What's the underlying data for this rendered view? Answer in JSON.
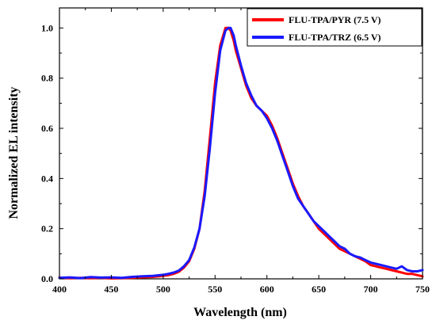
{
  "chart_data": {
    "type": "line",
    "title": "",
    "xlabel": "Wavelength (nm)",
    "ylabel": "Normalized EL intensity",
    "xlim": [
      400,
      750
    ],
    "ylim": [
      0,
      1.08
    ],
    "x_ticks": [
      "400",
      "450",
      "500",
      "550",
      "600",
      "650",
      "700",
      "750"
    ],
    "y_ticks": [
      "0.0",
      "0.2",
      "0.4",
      "0.6",
      "0.8",
      "1.0"
    ],
    "x_tick_values": [
      400,
      450,
      500,
      550,
      600,
      650,
      700,
      750
    ],
    "y_tick_values": [
      0.0,
      0.2,
      0.4,
      0.6,
      0.8,
      1.0
    ],
    "legend_position": "top-right",
    "grid": false,
    "series": [
      {
        "name": "FLU-TPA/PYR (7.5 V)",
        "color": "#ff0000",
        "x": [
          400,
          410,
          420,
          430,
          440,
          450,
          460,
          470,
          480,
          490,
          500,
          505,
          510,
          515,
          520,
          525,
          530,
          535,
          540,
          545,
          550,
          555,
          560,
          563,
          565,
          568,
          570,
          575,
          580,
          585,
          590,
          595,
          600,
          605,
          610,
          615,
          620,
          625,
          630,
          635,
          640,
          645,
          650,
          655,
          660,
          665,
          670,
          675,
          680,
          685,
          690,
          695,
          700,
          705,
          710,
          715,
          720,
          725,
          730,
          735,
          740,
          745,
          750
        ],
        "y": [
          0.005,
          0.003,
          0.004,
          0.003,
          0.004,
          0.002,
          0.003,
          0.004,
          0.006,
          0.008,
          0.012,
          0.015,
          0.02,
          0.028,
          0.045,
          0.07,
          0.12,
          0.2,
          0.35,
          0.56,
          0.78,
          0.93,
          1.0,
          1.0,
          0.99,
          0.95,
          0.91,
          0.84,
          0.77,
          0.72,
          0.69,
          0.67,
          0.65,
          0.61,
          0.56,
          0.5,
          0.44,
          0.38,
          0.33,
          0.29,
          0.26,
          0.23,
          0.2,
          0.18,
          0.16,
          0.14,
          0.12,
          0.11,
          0.1,
          0.09,
          0.08,
          0.07,
          0.055,
          0.05,
          0.045,
          0.04,
          0.035,
          0.03,
          0.025,
          0.02,
          0.02,
          0.015,
          0.01
        ]
      },
      {
        "name": "FLU-TPA/TRZ (6.5 V)",
        "color": "#1a1aff",
        "x": [
          400,
          410,
          420,
          430,
          440,
          450,
          460,
          470,
          480,
          490,
          500,
          505,
          510,
          515,
          520,
          525,
          530,
          535,
          540,
          545,
          550,
          555,
          560,
          563,
          565,
          568,
          570,
          575,
          580,
          585,
          590,
          595,
          600,
          605,
          610,
          615,
          620,
          625,
          630,
          635,
          640,
          645,
          650,
          655,
          660,
          665,
          670,
          675,
          680,
          685,
          690,
          695,
          700,
          705,
          710,
          715,
          720,
          725,
          730,
          735,
          740,
          745,
          750
        ],
        "y": [
          0.004,
          0.006,
          0.003,
          0.007,
          0.005,
          0.006,
          0.004,
          0.008,
          0.01,
          0.012,
          0.016,
          0.02,
          0.025,
          0.033,
          0.05,
          0.075,
          0.125,
          0.2,
          0.33,
          0.52,
          0.74,
          0.91,
          0.99,
          1.0,
          1.0,
          0.97,
          0.93,
          0.85,
          0.78,
          0.73,
          0.69,
          0.67,
          0.64,
          0.6,
          0.55,
          0.49,
          0.43,
          0.37,
          0.32,
          0.29,
          0.26,
          0.23,
          0.21,
          0.19,
          0.17,
          0.15,
          0.13,
          0.12,
          0.1,
          0.09,
          0.085,
          0.075,
          0.065,
          0.06,
          0.055,
          0.05,
          0.045,
          0.04,
          0.05,
          0.035,
          0.03,
          0.03,
          0.035
        ]
      }
    ]
  }
}
